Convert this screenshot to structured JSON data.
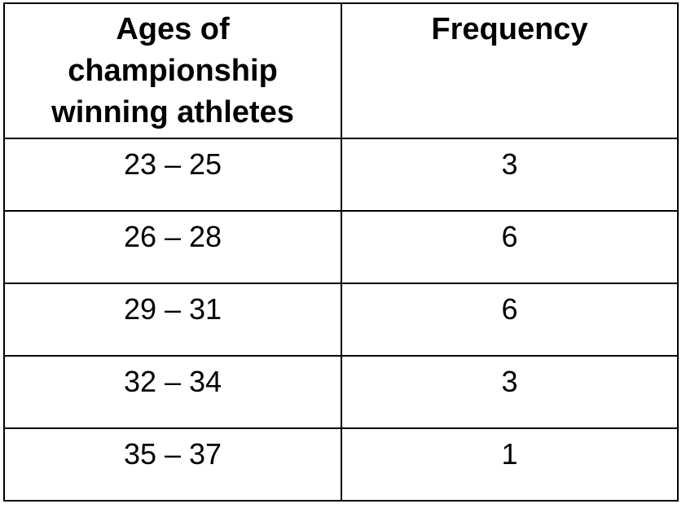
{
  "table": {
    "headers": {
      "age": "Ages of championship winning athletes",
      "frequency": "Frequency"
    },
    "rows": [
      {
        "age": "23 – 25",
        "frequency": "3"
      },
      {
        "age": "26 – 28",
        "frequency": "6"
      },
      {
        "age": "29 – 31",
        "frequency": "6"
      },
      {
        "age": "32 – 34",
        "frequency": "3"
      },
      {
        "age": "35 – 37",
        "frequency": "1"
      }
    ]
  }
}
